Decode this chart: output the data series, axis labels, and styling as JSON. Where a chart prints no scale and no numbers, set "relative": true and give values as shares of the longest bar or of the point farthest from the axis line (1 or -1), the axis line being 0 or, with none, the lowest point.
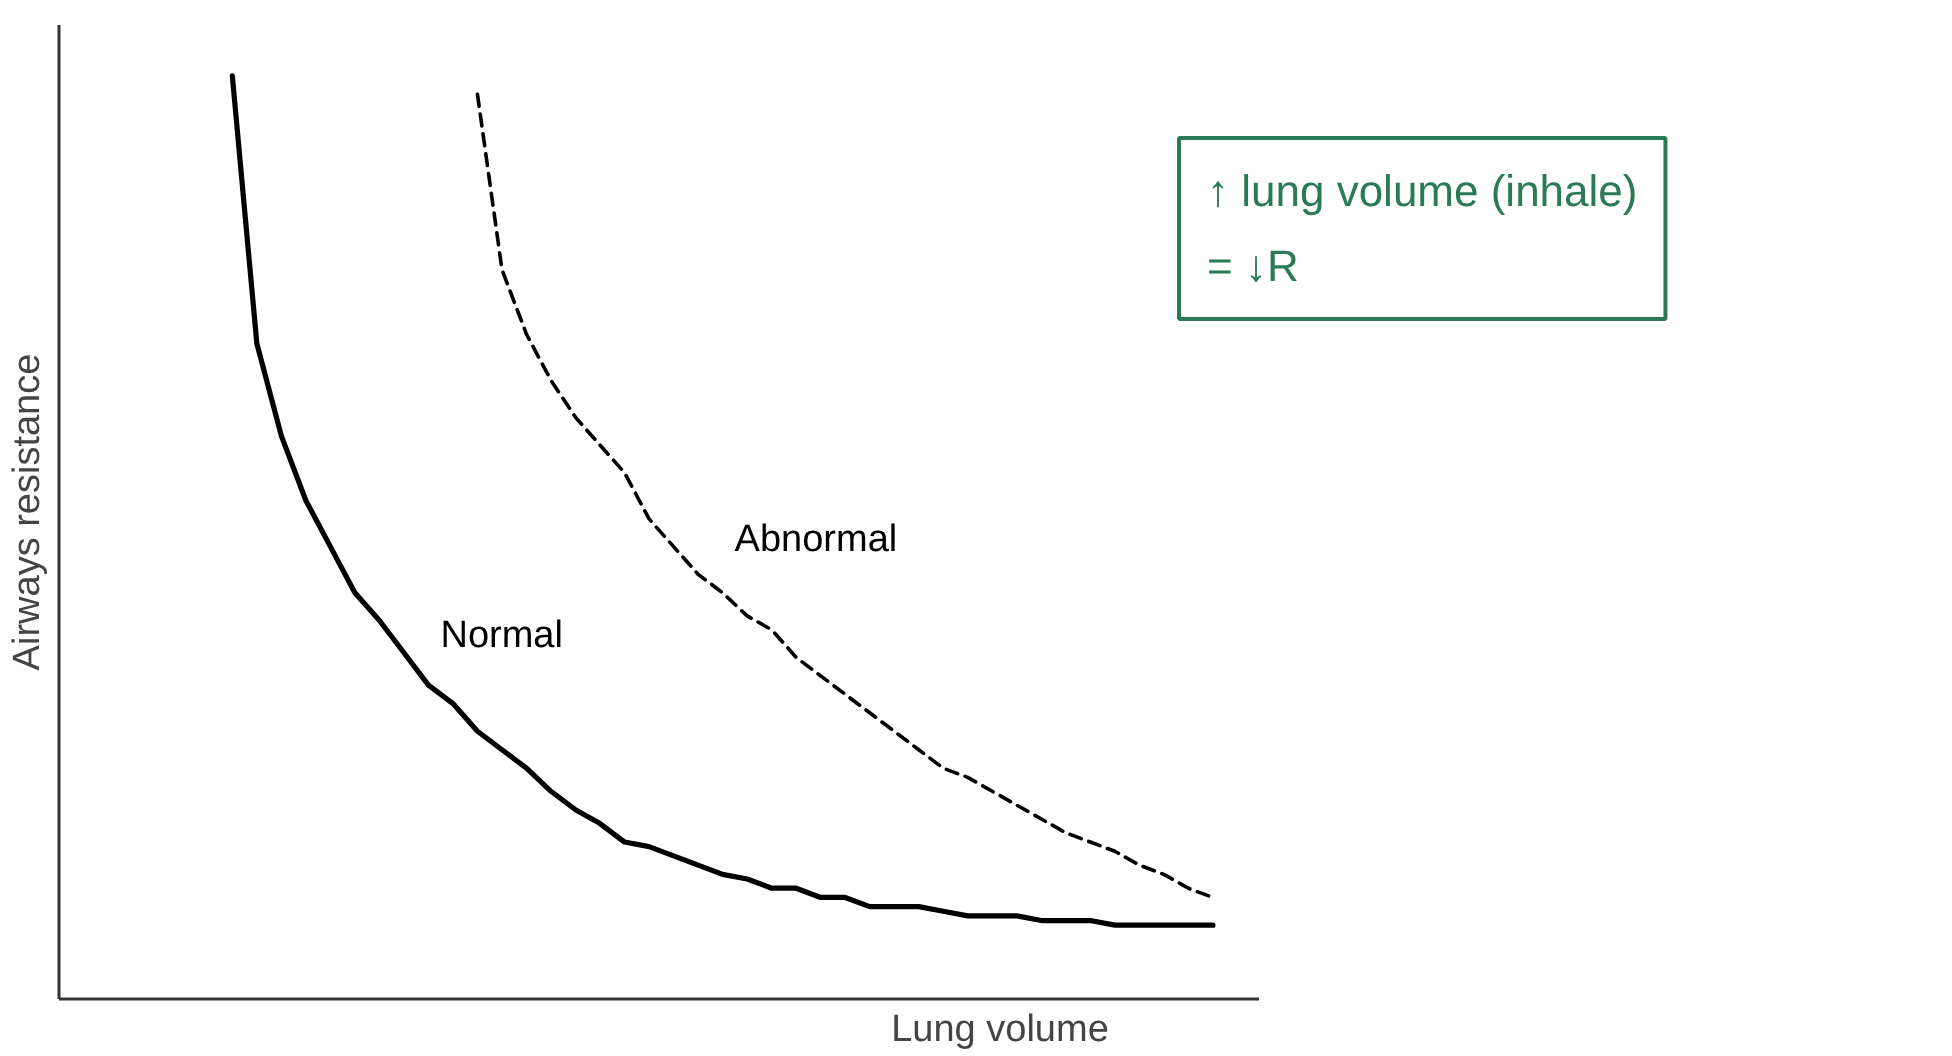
{
  "chart_data": {
    "type": "line",
    "relative": true,
    "xlabel": "Lung volume",
    "ylabel": "Airways resistance",
    "categories": [
      null,
      null,
      null,
      null,
      null,
      null,
      null,
      null,
      null,
      null,
      null,
      null,
      null,
      null,
      null,
      null,
      null,
      null,
      null,
      null,
      null,
      null,
      null,
      null,
      null,
      null,
      null,
      null,
      null,
      null,
      null,
      null,
      null,
      null,
      null,
      null,
      null,
      null,
      null,
      null,
      null
    ],
    "series": [
      {
        "name": "Normal",
        "color": "#000000",
        "line_style": "solid",
        "values": [
          1.0,
          0.71,
          0.61,
          0.54,
          0.49,
          0.44,
          0.41,
          0.375,
          0.34,
          0.32,
          0.29,
          0.27,
          0.25,
          0.225,
          0.205,
          0.19,
          0.17,
          0.165,
          0.155,
          0.145,
          0.135,
          0.13,
          0.12,
          0.12,
          0.11,
          0.11,
          0.1,
          0.1,
          0.1,
          0.095,
          0.09,
          0.09,
          0.09,
          0.085,
          0.085,
          0.085,
          0.08,
          0.08,
          0.08,
          0.08,
          0.08
        ]
      },
      {
        "name": "Abnormal",
        "color": "#000000",
        "line_style": "dashed",
        "values": [
          null,
          null,
          null,
          null,
          null,
          null,
          null,
          null,
          null,
          null,
          0.98,
          0.79,
          0.72,
          0.67,
          0.63,
          0.6,
          0.57,
          0.52,
          0.49,
          0.46,
          0.44,
          0.415,
          0.4,
          0.37,
          0.35,
          0.33,
          0.31,
          0.29,
          0.27,
          0.25,
          0.24,
          0.225,
          0.21,
          0.195,
          0.18,
          0.17,
          0.16,
          0.145,
          0.135,
          0.12,
          0.11
        ]
      }
    ],
    "annotations": [
      "↑ lung volume (inhale)\n= ↓R"
    ]
  }
}
